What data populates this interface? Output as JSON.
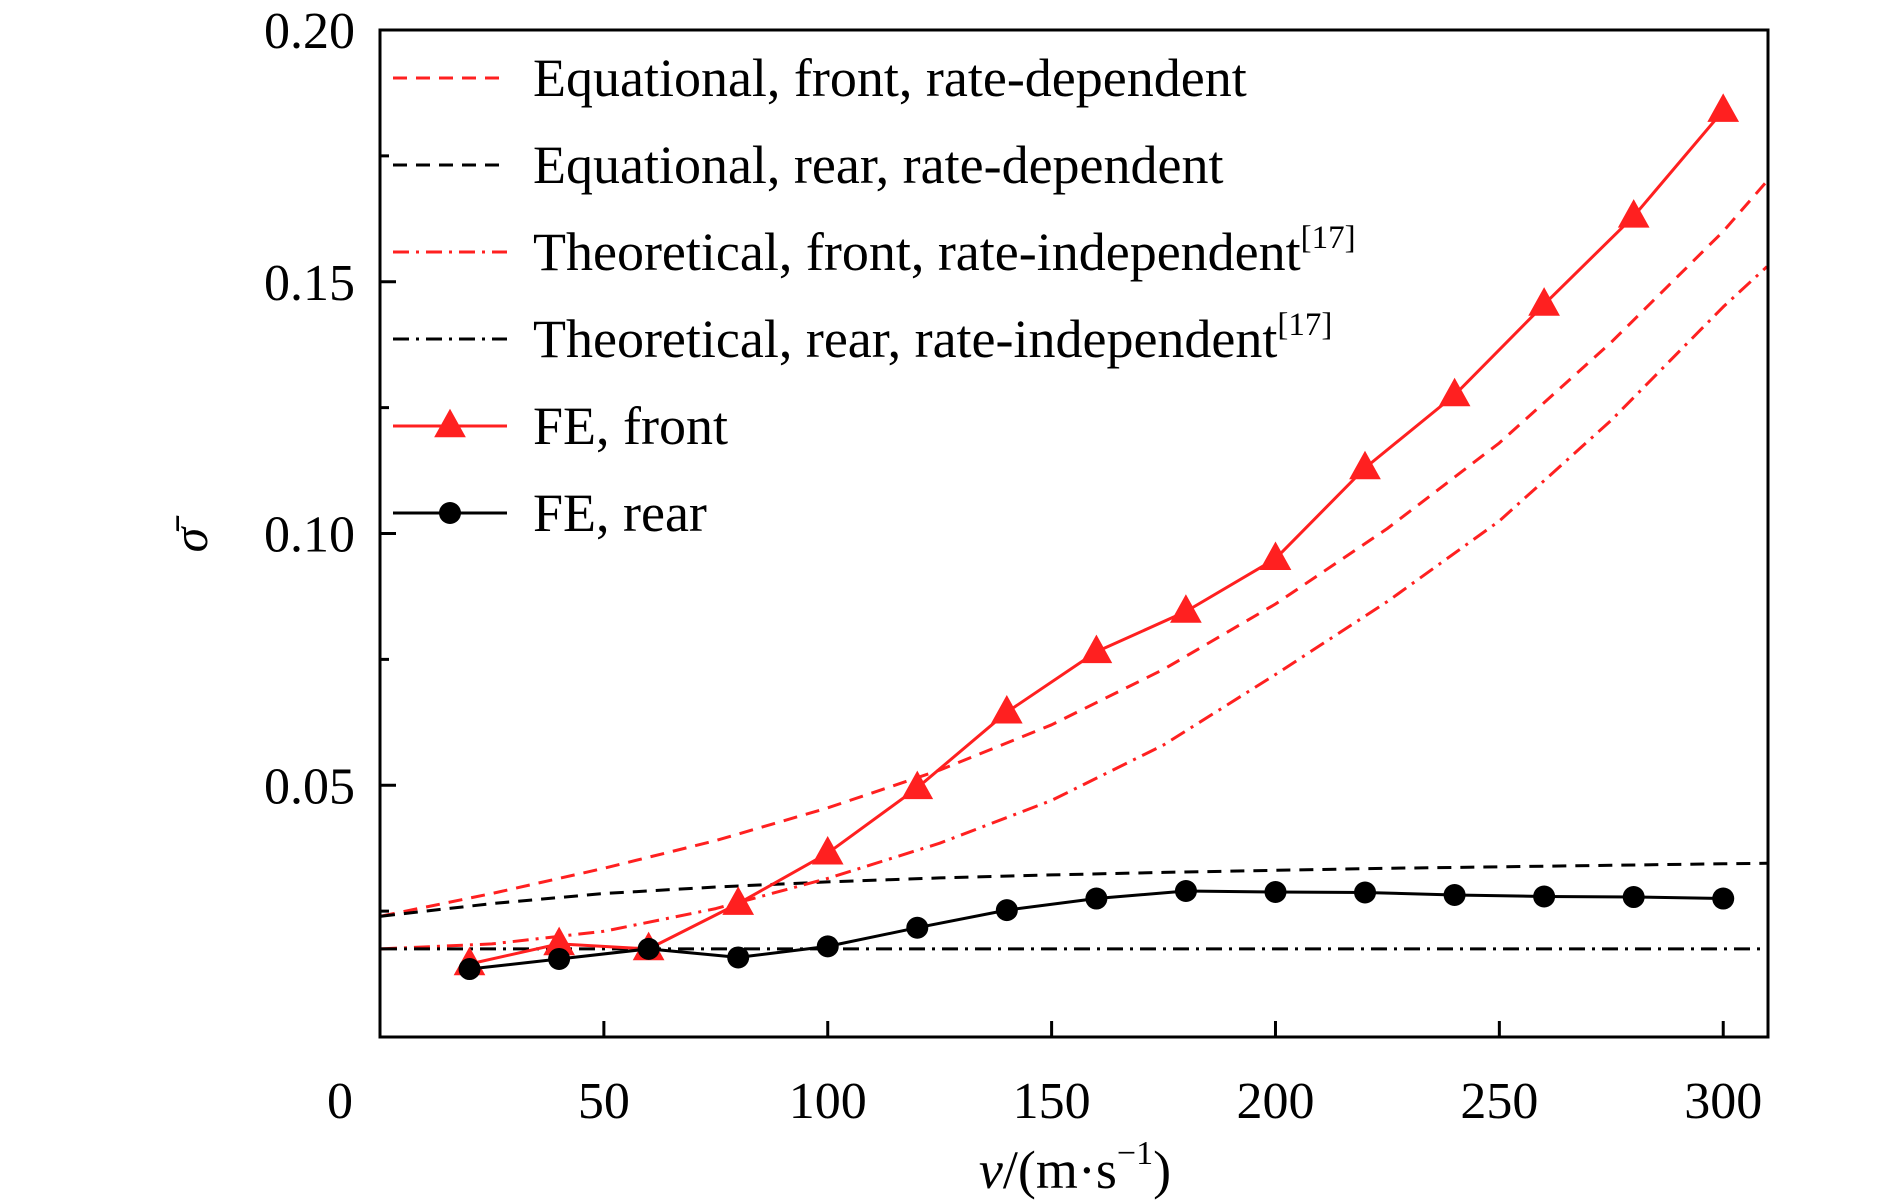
{
  "chart_data": {
    "type": "line",
    "xlabel": {
      "italic": "v",
      "rest": "/(m·s",
      "sup": "−1",
      "close": ")"
    },
    "ylabel": "σ̄",
    "x_origin_label": "0",
    "xlim": [
      0,
      310
    ],
    "ylim": [
      0,
      0.2
    ],
    "x_ticks": [
      50,
      100,
      150,
      200,
      250,
      300
    ],
    "x_tick_labels": [
      "50",
      "100",
      "150",
      "200",
      "250",
      "300"
    ],
    "y_ticks": [
      0.05,
      0.1,
      0.15,
      0.2
    ],
    "y_tick_labels": [
      "0.05",
      "0.10",
      "0.15",
      "0.20"
    ],
    "y_minor_ticks": [
      0.025,
      0.075,
      0.125,
      0.175
    ],
    "grid": false,
    "legend_position": "top-left",
    "series": [
      {
        "name": "Equational, front, rate-dependent",
        "sup": "",
        "color": "#ff2020",
        "style": "dashed",
        "marker": "none",
        "x": [
          0,
          25,
          50,
          75,
          100,
          125,
          150,
          175,
          200,
          225,
          250,
          275,
          300,
          310
        ],
        "y": [
          0.024,
          0.0285,
          0.0335,
          0.039,
          0.0455,
          0.053,
          0.062,
          0.073,
          0.086,
          0.101,
          0.118,
          0.138,
          0.16,
          0.17
        ]
      },
      {
        "name": "Equational, rear, rate-dependent",
        "sup": "",
        "color": "#000000",
        "style": "dashed",
        "marker": "none",
        "x": [
          0,
          25,
          50,
          75,
          100,
          125,
          150,
          175,
          200,
          225,
          250,
          275,
          300,
          310
        ],
        "y": [
          0.024,
          0.0265,
          0.0285,
          0.0298,
          0.0308,
          0.0316,
          0.0322,
          0.0327,
          0.0331,
          0.0335,
          0.0338,
          0.0341,
          0.0344,
          0.0345
        ]
      },
      {
        "name": "Theoretical, front, rate-independent",
        "sup": "[17]",
        "color": "#ff2020",
        "style": "dashdot",
        "marker": "none",
        "x": [
          0,
          25,
          50,
          75,
          100,
          125,
          150,
          175,
          200,
          225,
          250,
          275,
          300,
          310
        ],
        "y": [
          0.0175,
          0.0185,
          0.021,
          0.0255,
          0.0315,
          0.0385,
          0.047,
          0.058,
          0.072,
          0.0865,
          0.1025,
          0.1225,
          0.145,
          0.153
        ]
      },
      {
        "name": "Theoretical, rear, rate-independent",
        "sup": "[17]",
        "color": "#000000",
        "style": "dashdot",
        "marker": "none",
        "x": [
          0,
          310
        ],
        "y": [
          0.0175,
          0.0175
        ]
      },
      {
        "name": "FE, front",
        "sup": "",
        "color": "#ff2020",
        "style": "solid",
        "marker": "triangle",
        "x": [
          20,
          40,
          60,
          80,
          100,
          120,
          140,
          160,
          180,
          200,
          220,
          240,
          260,
          280,
          300
        ],
        "y": [
          0.0145,
          0.0185,
          0.0175,
          0.0265,
          0.0365,
          0.0495,
          0.0645,
          0.0765,
          0.0845,
          0.095,
          0.113,
          0.1275,
          0.1455,
          0.163,
          0.184
        ]
      },
      {
        "name": "FE, rear",
        "sup": "",
        "color": "#000000",
        "style": "solid",
        "marker": "circle",
        "x": [
          20,
          40,
          60,
          80,
          100,
          120,
          140,
          160,
          180,
          200,
          220,
          240,
          260,
          280,
          300
        ],
        "y": [
          0.0135,
          0.0155,
          0.0175,
          0.0158,
          0.018,
          0.0217,
          0.0252,
          0.0275,
          0.029,
          0.0288,
          0.0287,
          0.0282,
          0.0279,
          0.0278,
          0.0275
        ]
      }
    ]
  }
}
